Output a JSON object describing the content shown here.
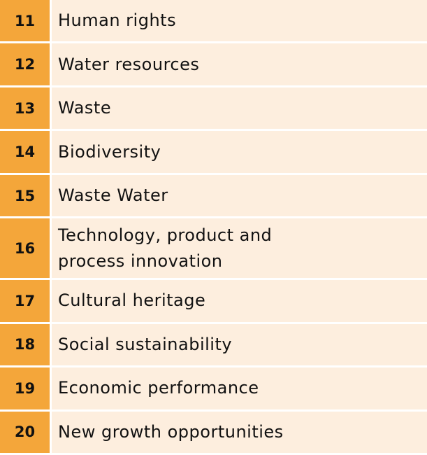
{
  "colors": {
    "number_cell": "#f4a63a",
    "label_cell": "#fdeede",
    "separator": "#ffffff"
  },
  "rows": [
    {
      "number": "11",
      "label": "Human rights"
    },
    {
      "number": "12",
      "label": "Water resources"
    },
    {
      "number": "13",
      "label": "Waste"
    },
    {
      "number": "14",
      "label": "Biodiversity"
    },
    {
      "number": "15",
      "label": "Waste Water"
    },
    {
      "number": "16",
      "label_line1": "Technology, product and",
      "label_line2": "process innovation"
    },
    {
      "number": "17",
      "label": "Cultural heritage"
    },
    {
      "number": "18",
      "label": "Social sustainability"
    },
    {
      "number": "19",
      "label": "Economic performance"
    },
    {
      "number": "20",
      "label": "New growth opportunities"
    }
  ]
}
